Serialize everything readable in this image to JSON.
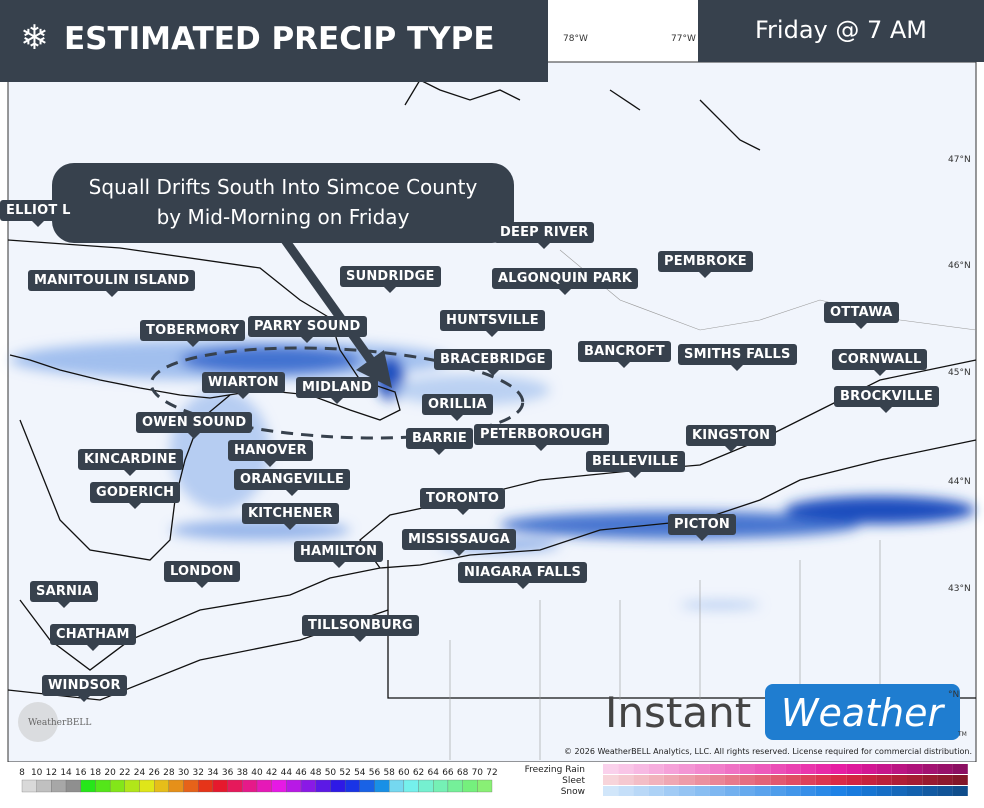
{
  "header": {
    "title": "ESTIMATED PRECIP TYPE",
    "time": "Friday @ 7 AM"
  },
  "annotation": {
    "lines": [
      "Squall Drifts South Into Simcoe County",
      "by Mid-Morning on Friday"
    ]
  },
  "map": {
    "longitudes": [
      "78°W",
      "77°W"
    ],
    "latitudes": [
      "47°N",
      "46°N",
      "45°N",
      "44°N",
      "43°N",
      "°N"
    ],
    "cities": [
      "ELLIOT L",
      "MANITOULIN ISLAND",
      "TOBERMORY",
      "PARRY SOUND",
      "SUNDRIDGE",
      "DEEP RIVER",
      "ALGONQUIN PARK",
      "PEMBROKE",
      "HUNTSVILLE",
      "BRACEBRIDGE",
      "BANCROFT",
      "SMITHS FALLS",
      "OTTAWA",
      "CORNWALL",
      "BROCKVILLE",
      "WIARTON",
      "MIDLAND",
      "ORILLIA",
      "BARRIE",
      "PETERBOROUGH",
      "OWEN SOUND",
      "KINGSTON",
      "HANOVER",
      "KINCARDINE",
      "BELLEVILLE",
      "ORANGEVILLE",
      "GODERICH",
      "TORONTO",
      "KITCHENER",
      "PICTON",
      "MISSISSAUGA",
      "HAMILTON",
      "LONDON",
      "NIAGARA FALLS",
      "SARNIA",
      "TILLSONBURG",
      "CHATHAM",
      "WINDSOR"
    ]
  },
  "branding": {
    "instant": "Instant",
    "weather": "Weather",
    "trademark": "TM",
    "weatherbell": "WeatherBELL",
    "copyright": "© 2026 WeatherBELL Analytics, LLC. All rights reserved. License required for commercial distribution."
  },
  "legend": {
    "scale": [
      8,
      10,
      12,
      14,
      16,
      18,
      20,
      22,
      24,
      26,
      28,
      30,
      32,
      34,
      36,
      38,
      40,
      42,
      44,
      46,
      48,
      50,
      52,
      54,
      56,
      58,
      60,
      62,
      64,
      66,
      68,
      70,
      72
    ],
    "types": [
      "Freezing Rain",
      "Sleet",
      "Snow"
    ]
  }
}
